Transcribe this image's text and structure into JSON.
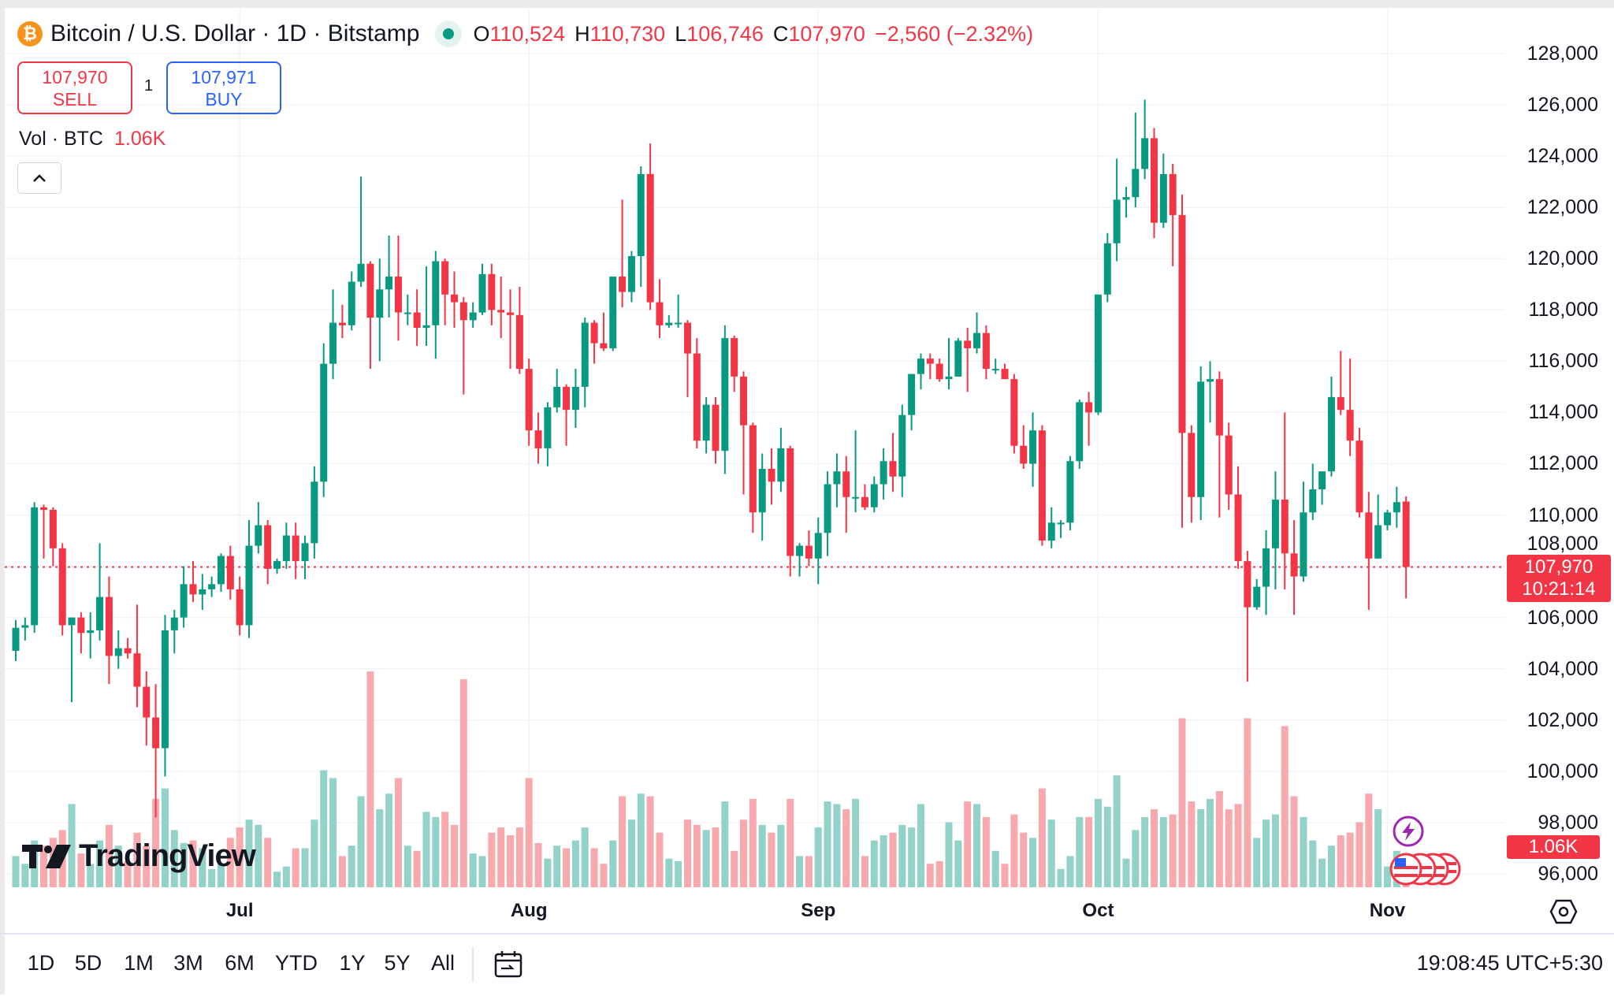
{
  "header": {
    "symbol_title": "Bitcoin / U.S. Dollar · 1D · Bitstamp",
    "coin_icon": "bitcoin-icon",
    "ohlc": {
      "o_label": "O",
      "o": "110,524",
      "h_label": "H",
      "h": "110,730",
      "l_label": "L",
      "l": "106,746",
      "c_label": "C",
      "c": "107,970",
      "change": "−2,560 (−2.32%)"
    }
  },
  "trade": {
    "sell_price": "107,970",
    "sell_label": "SELL",
    "quantity": "1",
    "buy_price": "107,971",
    "buy_label": "BUY"
  },
  "volume_legend": {
    "label": "Vol · BTC",
    "value": "1.06K"
  },
  "price_axis": [
    "128,000",
    "126,000",
    "124,000",
    "122,000",
    "120,000",
    "118,000",
    "116,000",
    "114,000",
    "112,000",
    "110,000",
    "108,000",
    "106,000",
    "104,000",
    "102,000",
    "100,000",
    "98,000",
    "96,000"
  ],
  "current_price": {
    "price": "107,970",
    "countdown": "10:21:14"
  },
  "current_volume": "1.06K",
  "time_axis": [
    "Jul",
    "Aug",
    "Sep",
    "Oct",
    "Nov"
  ],
  "ranges": [
    "1D",
    "5D",
    "1M",
    "3M",
    "6M",
    "YTD",
    "1Y",
    "5Y",
    "All"
  ],
  "clock": "19:08:45 UTC+5:30",
  "logo_text": "TradingView",
  "colors": {
    "up": "#089981",
    "down": "#f23645",
    "vol_up": "#92d2c9",
    "vol_down": "#f7a9ad",
    "buy": "#2962ff",
    "bitcoin": "#f7931a"
  },
  "chart_data": {
    "type": "candlestick",
    "ylim": [
      95000,
      129000
    ],
    "grid": true,
    "volume_unit": "K BTC",
    "columns": [
      "date",
      "open",
      "high",
      "low",
      "close",
      "volume"
    ],
    "candles": [
      [
        "Jun 7",
        104700,
        105900,
        104300,
        105600,
        1.2
      ],
      [
        "Jun 8",
        105600,
        106000,
        105100,
        105700,
        0.9
      ],
      [
        "Jun 9",
        105700,
        110500,
        105400,
        110300,
        1.8
      ],
      [
        "Jun 10",
        110300,
        110400,
        108300,
        110200,
        1.6
      ],
      [
        "Jun 11",
        110200,
        110300,
        108000,
        108700,
        1.9
      ],
      [
        "Jun 12",
        108700,
        108900,
        105300,
        105700,
        2.2
      ],
      [
        "Jun 13",
        105700,
        106000,
        102700,
        106000,
        3.2
      ],
      [
        "Jun 14",
        106000,
        106200,
        104600,
        105400,
        1.3
      ],
      [
        "Jun 15",
        105400,
        106200,
        104400,
        105500,
        0.9
      ],
      [
        "Jun 16",
        105500,
        108900,
        105100,
        106800,
        1.8
      ],
      [
        "Jun 17",
        106800,
        107600,
        103400,
        104500,
        2.4
      ],
      [
        "Jun 18",
        104500,
        105500,
        104000,
        104800,
        1.6
      ],
      [
        "Jun 19",
        104800,
        105200,
        104400,
        104600,
        1.0
      ],
      [
        "Jun 20",
        104600,
        106500,
        102500,
        103300,
        2.1
      ],
      [
        "Jun 21",
        103300,
        103900,
        101000,
        102100,
        1.6
      ],
      [
        "Jun 22",
        102100,
        103400,
        98200,
        100900,
        3.4
      ],
      [
        "Jun 23",
        100900,
        106100,
        99800,
        105500,
        3.8
      ],
      [
        "Jun 24",
        105500,
        106300,
        104600,
        106000,
        2.2
      ],
      [
        "Jun 25",
        106000,
        108000,
        105600,
        107300,
        1.7
      ],
      [
        "Jun 26",
        107300,
        108200,
        106600,
        106900,
        1.8
      ],
      [
        "Jun 27",
        106900,
        107700,
        106300,
        107100,
        1.5
      ],
      [
        "Jun 28",
        107100,
        107600,
        106800,
        107300,
        0.7
      ],
      [
        "Jun 29",
        107300,
        108500,
        107000,
        108400,
        0.9
      ],
      [
        "Jun 30",
        108400,
        108800,
        106700,
        107100,
        1.9
      ],
      [
        "Jul 1",
        107100,
        107600,
        105300,
        105700,
        2.3
      ],
      [
        "Jul 2",
        105700,
        109800,
        105200,
        108800,
        2.6
      ],
      [
        "Jul 3",
        108800,
        110500,
        108500,
        109600,
        2.4
      ],
      [
        "Jul 4",
        109600,
        109800,
        107300,
        107900,
        1.9
      ],
      [
        "Jul 5",
        107900,
        108300,
        107700,
        108200,
        0.6
      ],
      [
        "Jul 6",
        108200,
        109700,
        107900,
        109200,
        0.8
      ],
      [
        "Jul 7",
        109200,
        109700,
        107500,
        108200,
        1.5
      ],
      [
        "Jul 8",
        108200,
        109200,
        107500,
        108900,
        1.5
      ],
      [
        "Jul 9",
        108900,
        111900,
        108300,
        111300,
        2.6
      ],
      [
        "Jul 10",
        111300,
        116700,
        110700,
        115900,
        4.5
      ],
      [
        "Jul 11",
        115900,
        118800,
        115300,
        117500,
        4.2
      ],
      [
        "Jul 12",
        117500,
        118200,
        116900,
        117400,
        1.2
      ],
      [
        "Jul 13",
        117400,
        119500,
        117200,
        119100,
        1.6
      ],
      [
        "Jul 14",
        119100,
        123200,
        118900,
        119800,
        3.5
      ],
      [
        "Jul 15",
        119800,
        119900,
        115700,
        117700,
        8.3
      ],
      [
        "Jul 16",
        117700,
        120000,
        116000,
        118800,
        3.0
      ],
      [
        "Jul 17",
        118800,
        120900,
        117700,
        119300,
        3.6
      ],
      [
        "Jul 18",
        119300,
        120900,
        116800,
        117900,
        4.2
      ],
      [
        "Jul 19",
        117900,
        118600,
        117400,
        117900,
        1.6
      ],
      [
        "Jul 20",
        117900,
        118800,
        116600,
        117300,
        1.4
      ],
      [
        "Jul 21",
        117300,
        119700,
        116600,
        117400,
        2.9
      ],
      [
        "Jul 22",
        117400,
        120300,
        116100,
        119900,
        2.7
      ],
      [
        "Jul 23",
        119900,
        120000,
        117400,
        118600,
        2.9
      ],
      [
        "Jul 24",
        118600,
        119500,
        117300,
        118300,
        2.4
      ],
      [
        "Jul 25",
        118300,
        118500,
        114700,
        117600,
        8.0
      ],
      [
        "Jul 26",
        117600,
        118300,
        117300,
        117900,
        1.3
      ],
      [
        "Jul 27",
        117900,
        119800,
        117800,
        119400,
        1.2
      ],
      [
        "Jul 28",
        119400,
        119800,
        117400,
        118000,
        2.1
      ],
      [
        "Jul 29",
        118000,
        119300,
        116900,
        117900,
        2.3
      ],
      [
        "Jul 30",
        117900,
        118800,
        115700,
        117800,
        2.0
      ],
      [
        "Jul 31",
        117800,
        118900,
        115500,
        115700,
        2.3
      ],
      [
        "Aug 1",
        115700,
        116100,
        112700,
        113300,
        4.2
      ],
      [
        "Aug 2",
        113300,
        114000,
        112000,
        112600,
        1.7
      ],
      [
        "Aug 3",
        112600,
        114400,
        111900,
        114200,
        1.1
      ],
      [
        "Aug 4",
        114200,
        115700,
        114000,
        115000,
        1.6
      ],
      [
        "Aug 5",
        115000,
        115100,
        112700,
        114100,
        1.5
      ],
      [
        "Aug 6",
        114100,
        115700,
        113400,
        115000,
        1.8
      ],
      [
        "Aug 7",
        115000,
        117700,
        114200,
        117500,
        2.3
      ],
      [
        "Aug 8",
        117500,
        117600,
        115900,
        116700,
        1.5
      ],
      [
        "Aug 9",
        116700,
        117900,
        116400,
        116500,
        0.9
      ],
      [
        "Aug 10",
        116500,
        119300,
        116400,
        119300,
        1.8
      ],
      [
        "Aug 11",
        119300,
        122300,
        118100,
        118700,
        3.5
      ],
      [
        "Aug 12",
        118700,
        120300,
        118300,
        120100,
        2.6
      ],
      [
        "Aug 13",
        120100,
        123600,
        118900,
        123300,
        3.6
      ],
      [
        "Aug 14",
        123300,
        124500,
        118000,
        118300,
        3.5
      ],
      [
        "Aug 15",
        118300,
        119200,
        116900,
        117400,
        2.1
      ],
      [
        "Aug 16",
        117400,
        117800,
        117300,
        117500,
        1.1
      ],
      [
        "Aug 17",
        117500,
        118600,
        117300,
        117500,
        1.0
      ],
      [
        "Aug 18",
        117500,
        117600,
        114600,
        116300,
        2.6
      ],
      [
        "Aug 19",
        116300,
        116900,
        112600,
        112900,
        2.4
      ],
      [
        "Aug 20",
        112900,
        114600,
        112400,
        114300,
        2.2
      ],
      [
        "Aug 21",
        114300,
        114600,
        112000,
        112500,
        2.3
      ],
      [
        "Aug 22",
        112500,
        117400,
        111600,
        116900,
        3.3
      ],
      [
        "Aug 23",
        116900,
        117000,
        114800,
        115400,
        1.4
      ],
      [
        "Aug 24",
        115400,
        115600,
        110800,
        113500,
        2.6
      ],
      [
        "Aug 25",
        113500,
        113600,
        109300,
        110100,
        3.4
      ],
      [
        "Aug 26",
        110100,
        112400,
        109000,
        111800,
        2.4
      ],
      [
        "Aug 27",
        111800,
        112600,
        110400,
        111300,
        2.1
      ],
      [
        "Aug 28",
        111300,
        113400,
        110900,
        112600,
        2.4
      ],
      [
        "Aug 29",
        112600,
        112700,
        107600,
        108400,
        3.4
      ],
      [
        "Aug 30",
        108400,
        108900,
        107600,
        108800,
        1.2
      ],
      [
        "Aug 31",
        108800,
        109400,
        108000,
        108300,
        1.2
      ],
      [
        "Sep 1",
        108300,
        109900,
        107300,
        109300,
        2.3
      ],
      [
        "Sep 2",
        109300,
        111700,
        108400,
        111200,
        3.3
      ],
      [
        "Sep 3",
        111200,
        112400,
        110300,
        111700,
        3.2
      ],
      [
        "Sep 4",
        111700,
        112300,
        109300,
        110700,
        3.0
      ],
      [
        "Sep 5",
        110700,
        113300,
        110100,
        110700,
        3.4
      ],
      [
        "Sep 6",
        110700,
        111200,
        110200,
        110300,
        1.2
      ],
      [
        "Sep 7",
        110300,
        111500,
        110100,
        111200,
        1.8
      ],
      [
        "Sep 8",
        111200,
        112600,
        110600,
        112100,
        2.0
      ],
      [
        "Sep 9",
        112100,
        113200,
        110900,
        111500,
        2.1
      ],
      [
        "Sep 10",
        111500,
        114300,
        110700,
        113900,
        2.4
      ],
      [
        "Sep 11",
        113900,
        115500,
        113300,
        115500,
        2.3
      ],
      [
        "Sep 12",
        115500,
        116300,
        114900,
        116100,
        3.2
      ],
      [
        "Sep 13",
        116100,
        116300,
        115300,
        115900,
        0.9
      ],
      [
        "Sep 14",
        115900,
        116100,
        115200,
        115300,
        1.0
      ],
      [
        "Sep 15",
        115300,
        116900,
        114900,
        115400,
        2.5
      ],
      [
        "Sep 16",
        115400,
        116900,
        115400,
        116800,
        1.8
      ],
      [
        "Sep 17",
        116800,
        117300,
        114800,
        116500,
        3.3
      ],
      [
        "Sep 18",
        116500,
        117900,
        116300,
        117100,
        3.2
      ],
      [
        "Sep 19",
        117100,
        117400,
        115300,
        115700,
        2.7
      ],
      [
        "Sep 20",
        115700,
        116100,
        115500,
        115700,
        1.4
      ],
      [
        "Sep 21",
        115700,
        115900,
        115300,
        115300,
        0.9
      ],
      [
        "Sep 22",
        115300,
        115500,
        112400,
        112700,
        2.8
      ],
      [
        "Sep 23",
        112700,
        113500,
        111800,
        112000,
        2.1
      ],
      [
        "Sep 24",
        112000,
        114000,
        111100,
        113300,
        1.9
      ],
      [
        "Sep 25",
        113300,
        113500,
        108800,
        109000,
        3.8
      ],
      [
        "Sep 26",
        109000,
        110300,
        108700,
        109700,
        2.6
      ],
      [
        "Sep 27",
        109700,
        109800,
        109100,
        109700,
        0.7
      ],
      [
        "Sep 28",
        109700,
        112300,
        109400,
        112100,
        1.2
      ],
      [
        "Sep 29",
        112100,
        114500,
        111800,
        114400,
        2.7
      ],
      [
        "Sep 30",
        114400,
        114800,
        112700,
        114000,
        2.7
      ],
      [
        "Oct 1",
        114000,
        118600,
        113900,
        118600,
        3.4
      ],
      [
        "Oct 2",
        118600,
        121000,
        118300,
        120600,
        3.1
      ],
      [
        "Oct 3",
        120600,
        123900,
        119900,
        122300,
        4.3
      ],
      [
        "Oct 4",
        122300,
        122800,
        121600,
        122400,
        1.1
      ],
      [
        "Oct 5",
        122400,
        125700,
        122000,
        123500,
        2.2
      ],
      [
        "Oct 6",
        123500,
        126200,
        123100,
        124700,
        2.7
      ],
      [
        "Oct 7",
        124700,
        125100,
        120800,
        121400,
        3.0
      ],
      [
        "Oct 8",
        121400,
        124100,
        121200,
        123300,
        2.7
      ],
      [
        "Oct 9",
        123300,
        123700,
        119700,
        121700,
        2.8
      ],
      [
        "Oct 10",
        121700,
        122500,
        109500,
        113200,
        6.5
      ],
      [
        "Oct 11",
        113200,
        113500,
        109700,
        110700,
        3.3
      ],
      [
        "Oct 12",
        110700,
        115800,
        109800,
        115200,
        3.0
      ],
      [
        "Oct 13",
        115200,
        116000,
        113600,
        115300,
        3.4
      ],
      [
        "Oct 14",
        115300,
        115600,
        109900,
        113100,
        3.7
      ],
      [
        "Oct 15",
        113100,
        113600,
        110200,
        110800,
        3.0
      ],
      [
        "Oct 16",
        110800,
        111900,
        107900,
        108200,
        3.2
      ],
      [
        "Oct 17",
        108200,
        108600,
        103500,
        106400,
        6.5
      ],
      [
        "Oct 18",
        106400,
        107500,
        106300,
        107200,
        1.9
      ],
      [
        "Oct 19",
        107200,
        109400,
        106100,
        108700,
        2.6
      ],
      [
        "Oct 20",
        108700,
        111700,
        107100,
        110600,
        2.8
      ],
      [
        "Oct 21",
        110600,
        114000,
        107100,
        108500,
        6.2
      ],
      [
        "Oct 22",
        108500,
        109800,
        106100,
        107600,
        3.5
      ],
      [
        "Oct 23",
        107600,
        111300,
        107400,
        110100,
        2.7
      ],
      [
        "Oct 24",
        110100,
        112000,
        109800,
        111000,
        1.8
      ],
      [
        "Oct 25",
        111000,
        111700,
        110400,
        111700,
        1.1
      ],
      [
        "Oct 26",
        111700,
        115400,
        111500,
        114600,
        1.6
      ],
      [
        "Oct 27",
        114600,
        116400,
        113900,
        114100,
        2.0
      ],
      [
        "Oct 28",
        114100,
        116100,
        112300,
        112900,
        2.1
      ],
      [
        "Oct 29",
        112900,
        113400,
        109900,
        110100,
        2.5
      ],
      [
        "Oct 30",
        110100,
        110900,
        106300,
        108300,
        3.6
      ],
      [
        "Oct 31",
        108300,
        110800,
        108300,
        109600,
        3.0
      ],
      [
        "Nov 1",
        109600,
        110200,
        109400,
        110100,
        0.8
      ],
      [
        "Nov 2",
        110100,
        111100,
        109500,
        110500,
        1.4
      ],
      [
        "Nov 3",
        110524,
        110730,
        106746,
        107970,
        1.06
      ]
    ]
  }
}
